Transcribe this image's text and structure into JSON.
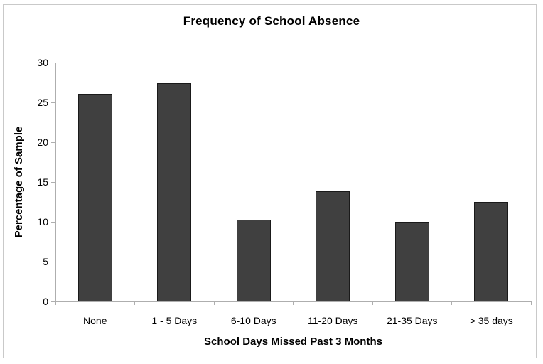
{
  "chart_data": {
    "type": "bar",
    "title": "Frequency of School Absence",
    "categories": [
      "None",
      "1 - 5 Days",
      "6-10 Days",
      "11-20 Days",
      "21-35 Days",
      "> 35 days"
    ],
    "values": [
      26.1,
      27.4,
      10.3,
      13.8,
      10.0,
      12.5
    ],
    "xlabel": "School Days Missed Past 3 Months",
    "ylabel": "Percentage of Sample",
    "ylim": [
      0,
      30
    ],
    "yticks": [
      0,
      5,
      10,
      15,
      20,
      25,
      30
    ],
    "grid": false,
    "legend_position": "none",
    "colors": {
      "bar_fill": "#404040",
      "bar_border": "#1a1a1a",
      "axis": "#aeaeae",
      "text": "#000000",
      "frame_border": "#c9c9c9",
      "background": "#ffffff"
    }
  }
}
